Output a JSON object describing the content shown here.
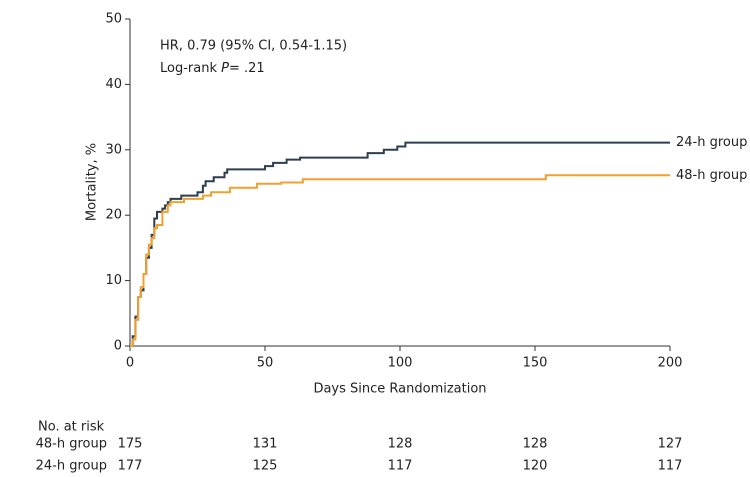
{
  "chart_data": {
    "type": "step",
    "ylabel": "Mortality, %",
    "xlabel": "Days Since Randomization",
    "annotations": [
      "HR, 0.79 (95% CI, 0.54-1.15)",
      "Log-rank",
      "P",
      "= .21"
    ],
    "xlim": [
      0,
      200
    ],
    "xticks": [
      0,
      50,
      100,
      150,
      200
    ],
    "ylim": [
      0,
      50
    ],
    "yticks": [
      0,
      10,
      20,
      30,
      40,
      50
    ],
    "series": [
      {
        "name": "24-h group",
        "color": "#2c3e50",
        "x": [
          0,
          1,
          2,
          3,
          4,
          5,
          6,
          7,
          8,
          9,
          10,
          12,
          13,
          14,
          15,
          19,
          25,
          27,
          28,
          31,
          35,
          36,
          50,
          53,
          58,
          63,
          88,
          94,
          99,
          102,
          200
        ],
        "values": [
          0,
          1.5,
          4.5,
          7.5,
          8.5,
          11,
          13.5,
          15,
          17,
          19.5,
          20.5,
          21,
          21.5,
          22,
          22.5,
          23,
          23.5,
          24.5,
          25.2,
          25.8,
          26.5,
          27,
          27.5,
          28,
          28.5,
          28.8,
          29.5,
          30,
          30.5,
          31.1,
          31.1
        ]
      },
      {
        "name": "48-h group",
        "color": "#f0a030",
        "x": [
          0,
          1,
          2,
          3,
          4,
          5,
          6,
          7,
          8,
          9,
          10,
          12,
          14,
          15,
          20,
          27,
          30,
          37,
          47,
          56,
          64,
          154,
          200
        ],
        "values": [
          0,
          1,
          4,
          7.5,
          9,
          11,
          14,
          15.5,
          16.5,
          18,
          18.5,
          20.5,
          21.5,
          22,
          22.5,
          23,
          23.5,
          24.2,
          24.8,
          25,
          25.5,
          26.1,
          26.1
        ]
      }
    ],
    "risk_table": {
      "title": "No. at risk",
      "rows": [
        {
          "label": "48-h group",
          "values": [
            175,
            131,
            128,
            128,
            127
          ]
        },
        {
          "label": "24-h group",
          "values": [
            177,
            125,
            117,
            120,
            117
          ]
        }
      ]
    }
  }
}
